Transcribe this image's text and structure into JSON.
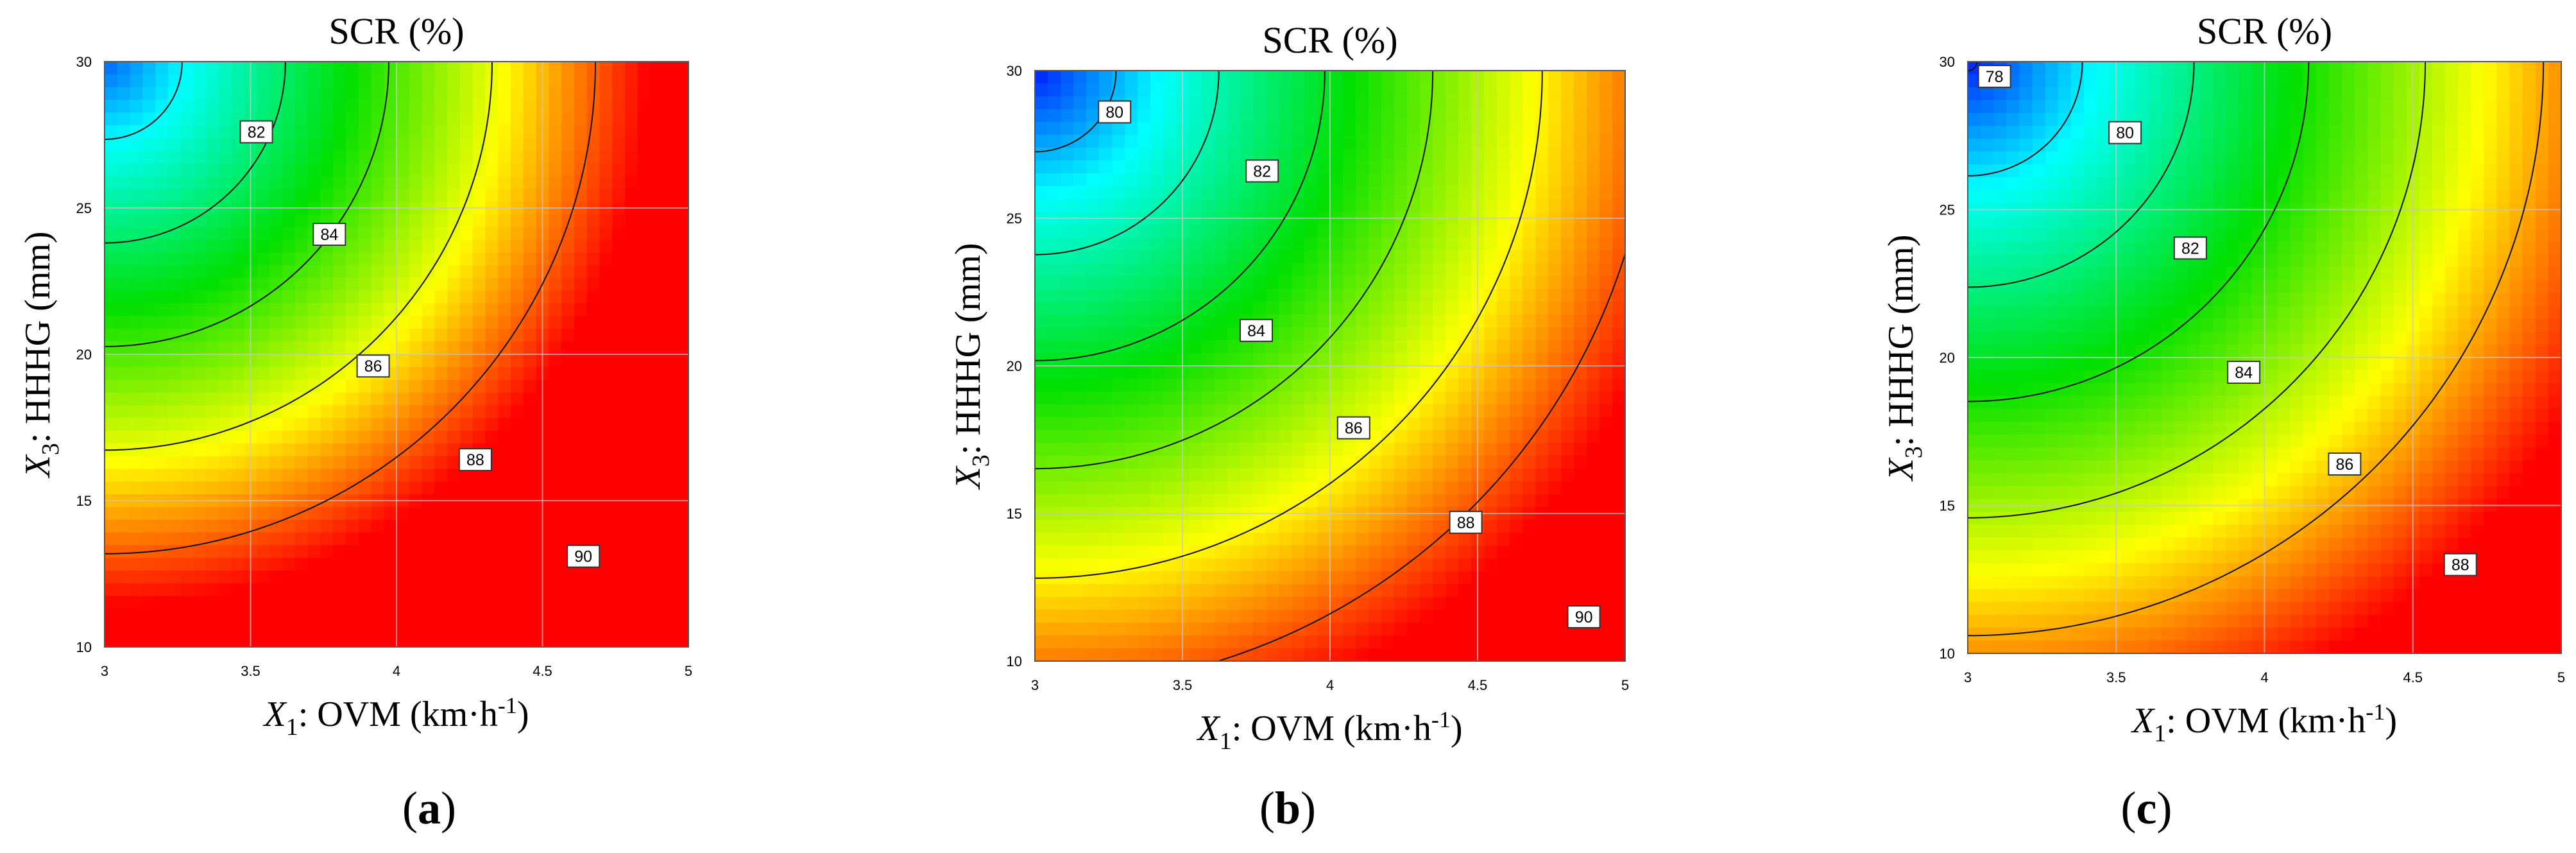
{
  "colors": {
    "low": "#0000ff",
    "mid_low": "#00ffff",
    "mid": "#00e000",
    "mid_high": "#ffff00",
    "high": "#ff0000",
    "contour_line": "#111111",
    "grid_line": "#c8c8c8"
  },
  "chart_data": [
    {
      "panel": "a",
      "type": "heatmap",
      "subtype": "contour",
      "title": "SCR (%)",
      "xlabel_var": "X",
      "xlabel_sub": "1",
      "xlabel_rest": ": OVM (km·h",
      "xlabel_sup": "-1",
      "xlabel_close": ")",
      "ylabel_var": "X",
      "ylabel_sub": "3",
      "ylabel_rest": ": HHHG (mm)",
      "xlim": [
        3,
        5
      ],
      "ylim": [
        10,
        30
      ],
      "xticks": [
        3,
        3.5,
        4,
        4.5,
        5
      ],
      "xtick_labels": [
        "3",
        "3.5",
        "4",
        "4.5",
        "5"
      ],
      "yticks": [
        10,
        15,
        20,
        25,
        30
      ],
      "ytick_labels": [
        "10",
        "15",
        "20",
        "25",
        "30"
      ],
      "model": {
        "center": [
          3,
          30
        ],
        "scale": [
          2,
          20
        ],
        "base": 80.5,
        "k": 11.3,
        "exp": 1.0
      },
      "color_range": [
        79.5,
        91
      ],
      "contour_levels": [
        82,
        84,
        86,
        88,
        90
      ],
      "contour_labels": [
        {
          "text": "82",
          "x": 3.52,
          "y": 27.6
        },
        {
          "text": "84",
          "x": 3.77,
          "y": 24.1
        },
        {
          "text": "86",
          "x": 3.92,
          "y": 19.6
        },
        {
          "text": "88",
          "x": 4.27,
          "y": 16.4
        },
        {
          "text": "90",
          "x": 4.64,
          "y": 13.1
        }
      ],
      "panel_label": "a"
    },
    {
      "panel": "b",
      "type": "heatmap",
      "subtype": "contour",
      "title": "SCR (%)",
      "xlabel_var": "X",
      "xlabel_sub": "1",
      "xlabel_rest": ": OVM (km·h",
      "xlabel_sup": "-1",
      "xlabel_close": ")",
      "ylabel_var": "X",
      "ylabel_sub": "3",
      "ylabel_rest": ": HHHG (mm)",
      "xlim": [
        3,
        5
      ],
      "ylim": [
        10,
        30
      ],
      "xticks": [
        3,
        3.5,
        4,
        4.5,
        5
      ],
      "xtick_labels": [
        "3",
        "3.5",
        "4",
        "4.5",
        "5"
      ],
      "yticks": [
        10,
        15,
        20,
        25,
        30
      ],
      "ytick_labels": [
        "10",
        "15",
        "20",
        "25",
        "30"
      ],
      "model": {
        "center": [
          3,
          30
        ],
        "scale": [
          2,
          20
        ],
        "base": 78.3,
        "k": 11.2,
        "exp": 0.95
      },
      "color_range": [
        78,
        91
      ],
      "contour_levels": [
        80,
        82,
        84,
        86,
        88,
        90
      ],
      "contour_labels": [
        {
          "text": "80",
          "x": 3.27,
          "y": 28.6
        },
        {
          "text": "82",
          "x": 3.77,
          "y": 26.6
        },
        {
          "text": "84",
          "x": 3.75,
          "y": 21.2
        },
        {
          "text": "86",
          "x": 4.08,
          "y": 17.9
        },
        {
          "text": "88",
          "x": 4.46,
          "y": 14.7
        },
        {
          "text": "90",
          "x": 4.86,
          "y": 11.5
        }
      ],
      "panel_label": "b"
    },
    {
      "panel": "c",
      "type": "heatmap",
      "subtype": "contour",
      "title": "SCR (%)",
      "xlabel_var": "X",
      "xlabel_sub": "1",
      "xlabel_rest": ": OVM (km·h",
      "xlabel_sup": "-1",
      "xlabel_close": ")",
      "ylabel_var": "X",
      "ylabel_sub": "3",
      "ylabel_rest": ": HHHG (mm)",
      "xlim": [
        3,
        5
      ],
      "ylim": [
        10,
        30
      ],
      "xticks": [
        3,
        3.5,
        4,
        4.5,
        5
      ],
      "xtick_labels": [
        "3",
        "3.5",
        "4",
        "4.5",
        "5"
      ],
      "yticks": [
        10,
        15,
        20,
        25,
        30
      ],
      "ytick_labels": [
        "10",
        "15",
        "20",
        "25",
        "30"
      ],
      "model": {
        "center": [
          3,
          30
        ],
        "scale": [
          2,
          20
        ],
        "base": 77.8,
        "k": 10.5,
        "exp": 0.95
      },
      "color_range": [
        77.5,
        90
      ],
      "contour_levels": [
        78,
        80,
        82,
        84,
        86,
        88
      ],
      "contour_labels": [
        {
          "text": "78",
          "x": 3.09,
          "y": 29.5
        },
        {
          "text": "80",
          "x": 3.53,
          "y": 27.6
        },
        {
          "text": "82",
          "x": 3.75,
          "y": 23.7
        },
        {
          "text": "84",
          "x": 3.93,
          "y": 19.5
        },
        {
          "text": "86",
          "x": 4.27,
          "y": 16.4
        },
        {
          "text": "88",
          "x": 4.66,
          "y": 13.0
        }
      ],
      "panel_label": "c"
    }
  ]
}
